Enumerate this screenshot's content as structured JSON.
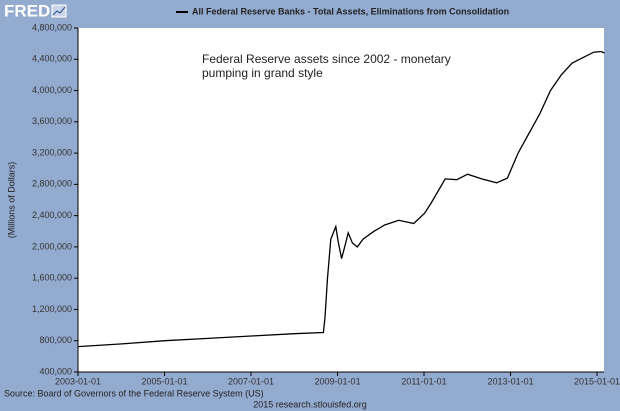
{
  "logo": "FRED",
  "chart_data": {
    "type": "line",
    "y_label": "(Millions of Dollars)",
    "annotation": [
      "Federal Reserve assets since 2002 - monetary",
      "pumping in grand style"
    ],
    "source": "Source: Board of Governors of the Federal Reserve System (US)",
    "footer": "2015 research.stlouisfed.org",
    "x": [
      "2003-01-01",
      "2004-01-07",
      "2005-01-05",
      "2006-01-04",
      "2007-01-03",
      "2008-01-02",
      "2008-09-03",
      "2008-09-17",
      "2008-10-08",
      "2008-11-05",
      "2008-12-17",
      "2009-01-07",
      "2009-02-04",
      "2009-03-11",
      "2009-04-01",
      "2009-05-06",
      "2009-06-17",
      "2009-08-05",
      "2009-11-04",
      "2010-02-03",
      "2010-06-02",
      "2010-10-06",
      "2011-01-05",
      "2011-03-02",
      "2011-06-29",
      "2011-10-05",
      "2012-01-04",
      "2012-05-02",
      "2012-09-05",
      "2012-12-05",
      "2013-03-06",
      "2013-06-05",
      "2013-09-04",
      "2013-12-04",
      "2014-03-05",
      "2014-06-04",
      "2014-09-03",
      "2014-12-03",
      "2015-02-04",
      "2015-03-04"
    ],
    "series": [
      {
        "name": "All Federal Reserve Banks - Total Assets, Eliminations from Consolidation",
        "color": "#000000",
        "values": [
          725000,
          760000,
          800000,
          830000,
          860000,
          890000,
          905000,
          1100000,
          1600000,
          2100000,
          2260000,
          2060000,
          1850000,
          2050000,
          2180000,
          2050000,
          2000000,
          2100000,
          2200000,
          2280000,
          2340000,
          2300000,
          2430000,
          2560000,
          2870000,
          2860000,
          2930000,
          2870000,
          2820000,
          2880000,
          3200000,
          3450000,
          3700000,
          4000000,
          4200000,
          4350000,
          4420000,
          4490000,
          4500000,
          4480000
        ]
      }
    ],
    "xlim": [
      "2003-01-01",
      "2015-03-01"
    ],
    "xticks": [
      "2003-01-01",
      "2005-01-01",
      "2007-01-01",
      "2009-01-01",
      "2011-01-01",
      "2013-01-01",
      "2015-01-01"
    ],
    "ylim": [
      400000,
      4800000
    ],
    "yticks": [
      {
        "value": 400000,
        "label": "400,000"
      },
      {
        "value": 800000,
        "label": "800,000"
      },
      {
        "value": 1200000,
        "label": "1,200,000"
      },
      {
        "value": 1600000,
        "label": "1,600,000"
      },
      {
        "value": 2000000,
        "label": "2,000,000"
      },
      {
        "value": 2400000,
        "label": "2,400,000"
      },
      {
        "value": 2800000,
        "label": "2,800,000"
      },
      {
        "value": 3200000,
        "label": "3,200,000"
      },
      {
        "value": 3600000,
        "label": "3,600,000"
      },
      {
        "value": 4000000,
        "label": "4,000,000"
      },
      {
        "value": 4400000,
        "label": "4,400,000"
      },
      {
        "value": 4800000,
        "label": "4,800,000"
      }
    ],
    "background": "#94abd0"
  }
}
